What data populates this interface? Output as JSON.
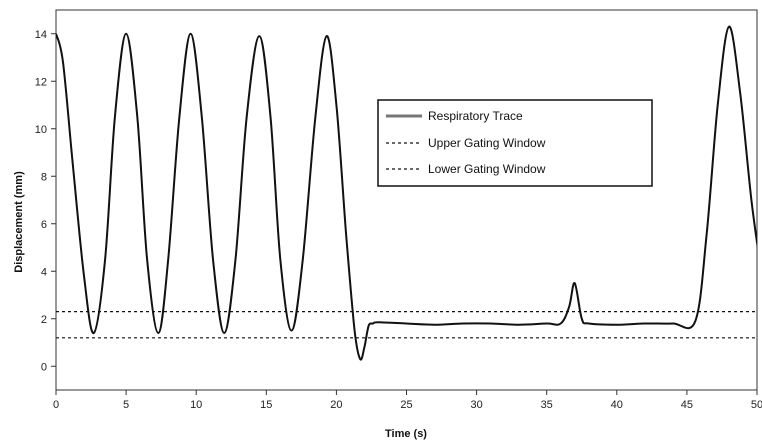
{
  "chart_data": {
    "type": "line",
    "title": "",
    "xlabel": "Time (s)",
    "ylabel": "Displacement (mm)",
    "xlim": [
      0,
      50
    ],
    "ylim": [
      -1,
      15
    ],
    "xticks": [
      0,
      5,
      10,
      15,
      20,
      25,
      30,
      35,
      40,
      45,
      50
    ],
    "xtick_labels": [
      "0",
      "5",
      "10",
      "15",
      "20",
      "25",
      "30",
      "35",
      "40",
      "45",
      "50"
    ],
    "yticks": [
      0,
      2,
      4,
      6,
      8,
      10,
      12,
      14
    ],
    "ytick_labels": [
      "0",
      "2",
      "4",
      "6",
      "8",
      "10",
      "12",
      "14"
    ],
    "grid": false,
    "legend_position": "upper-right",
    "series": [
      {
        "name": "Respiratory Trace",
        "style": "solid",
        "x": [
          0,
          0.5,
          1.2,
          2.0,
          2.7,
          3.5,
          4.2,
          5.0,
          5.8,
          6.5,
          7.3,
          8.0,
          8.8,
          9.6,
          10.4,
          11.2,
          12.0,
          12.8,
          13.6,
          14.5,
          15.3,
          16.0,
          16.8,
          17.6,
          18.5,
          19.3,
          20.0,
          20.7,
          21.3,
          21.7,
          22.0,
          22.3,
          22.6,
          23,
          25,
          27,
          29,
          31,
          33,
          35,
          36.0,
          36.6,
          37.0,
          37.5,
          38,
          40,
          42,
          44,
          45.6,
          46.4,
          47.2,
          48.0,
          48.8,
          49.6,
          50.2
        ],
        "values": [
          14.0,
          12.8,
          8.5,
          3.8,
          1.4,
          4.5,
          10.5,
          14.0,
          10.5,
          4.5,
          1.4,
          4.5,
          10.5,
          14.0,
          10.5,
          4.5,
          1.4,
          4.5,
          10.5,
          13.9,
          10.5,
          4.5,
          1.5,
          4.5,
          10.5,
          13.9,
          11.0,
          5.5,
          1.5,
          0.3,
          0.8,
          1.7,
          1.8,
          1.85,
          1.8,
          1.75,
          1.8,
          1.8,
          1.75,
          1.8,
          1.8,
          2.5,
          3.5,
          2.0,
          1.8,
          1.75,
          1.8,
          1.8,
          1.9,
          5.5,
          11.0,
          14.3,
          11.5,
          7.0,
          4.4
        ],
        "color": "#111111"
      },
      {
        "name": "Upper Gating Window",
        "style": "dashed",
        "x": [
          0,
          50.5
        ],
        "values": [
          2.3,
          2.3
        ],
        "color": "#111111"
      },
      {
        "name": "Lower Gating Window",
        "style": "dashed",
        "x": [
          0,
          50.5
        ],
        "values": [
          1.2,
          1.2
        ],
        "color": "#111111"
      }
    ]
  }
}
